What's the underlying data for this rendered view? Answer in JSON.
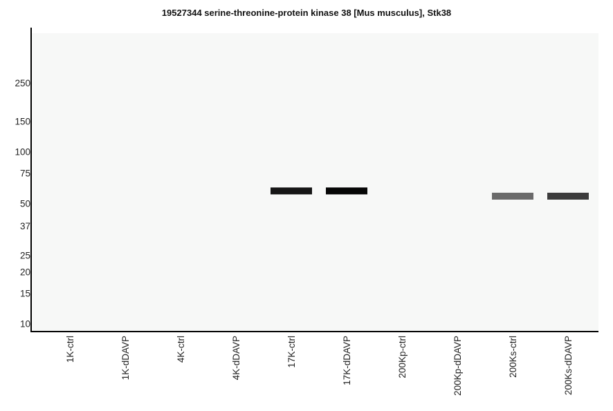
{
  "chart_data": {
    "type": "bar",
    "title": "19527344 serine-threonine-protein kinase 38 [Mus musculus], Stk38",
    "xlabel": "",
    "ylabel": "",
    "y_scale": "log",
    "y_ticks": [
      250,
      150,
      100,
      75,
      50,
      37,
      25,
      20,
      15,
      10
    ],
    "ylim": [
      9,
      500
    ],
    "grid": false,
    "legend": "none",
    "colors": {
      "panel": "#f7f8f7",
      "axis": "#000000"
    },
    "categories": [
      "1K-ctrl",
      "1K-dDAVP",
      "4K-ctrl",
      "4K-dDAVP",
      "17K-ctrl",
      "17K-dDAVP",
      "200Kp-ctrl",
      "200Kp-dDAVP",
      "200Ks-ctrl",
      "200Ks-dDAVP"
    ],
    "bands": [
      {
        "lane": "17K-ctrl",
        "mw": 59,
        "intensity": 0.93,
        "color": "#161616"
      },
      {
        "lane": "17K-dDAVP",
        "mw": 59,
        "intensity": 1.0,
        "color": "#060606"
      },
      {
        "lane": "200Ks-ctrl",
        "mw": 55,
        "intensity": 0.6,
        "color": "#6a6a6a"
      },
      {
        "lane": "200Ks-dDAVP",
        "mw": 55,
        "intensity": 0.8,
        "color": "#3c3c3c"
      }
    ]
  }
}
